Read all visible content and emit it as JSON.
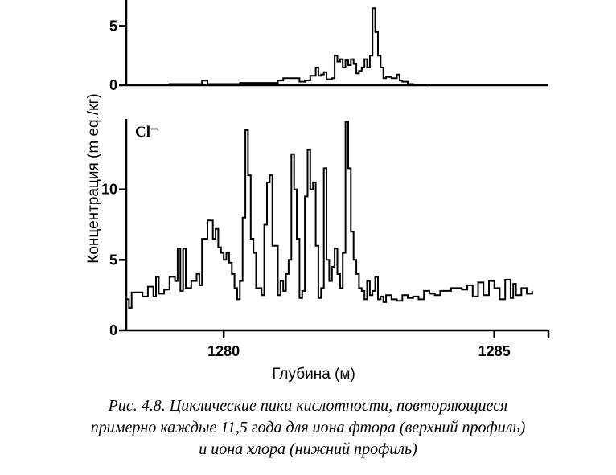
{
  "chart_data": [
    {
      "type": "line",
      "panel": "upper",
      "label": "",
      "ylabel": "",
      "xlabel": "",
      "xlim": [
        1278.2,
        1286.0
      ],
      "ylim": [
        0,
        7.2
      ],
      "y_ticks": [
        {
          "value": 0,
          "label": "0"
        },
        {
          "value": 5,
          "label": "5"
        }
      ],
      "x": [
        1278.2,
        1279.0,
        1279.5,
        1279.6,
        1279.7,
        1280.3,
        1280.9,
        1281.0,
        1281.1,
        1281.4,
        1281.5,
        1281.6,
        1281.7,
        1281.75,
        1281.8,
        1281.85,
        1281.9,
        1282.0,
        1282.05,
        1282.1,
        1282.15,
        1282.2,
        1282.25,
        1282.3,
        1282.35,
        1282.4,
        1282.45,
        1282.5,
        1282.55,
        1282.6,
        1282.65,
        1282.7,
        1282.75,
        1282.8,
        1282.85,
        1282.9,
        1282.95,
        1283.0,
        1283.1,
        1283.2,
        1283.25,
        1283.3,
        1283.4,
        1283.5,
        1283.8,
        1286.0
      ],
      "series": [
        {
          "values": [
            0,
            0.1,
            0.1,
            0.4,
            0.1,
            0.2,
            0.2,
            0.4,
            0.6,
            0.3,
            0.4,
            0.8,
            1.5,
            0.8,
            0.9,
            1.1,
            0.5,
            0.6,
            2.5,
            2.0,
            2.2,
            1.5,
            2.1,
            1.7,
            2.2,
            1.8,
            1.0,
            1.2,
            1.5,
            2.2,
            1.5,
            2.5,
            6.5,
            4.5,
            2.5,
            1.5,
            0.6,
            0.7,
            0.6,
            0.9,
            0.4,
            0.3,
            0.1,
            0.05,
            0,
            0
          ]
        }
      ]
    },
    {
      "type": "line",
      "panel": "lower",
      "label": "Cl⁻",
      "ylabel": "Концентрация (m eq./кг)",
      "xlabel": "Глубина (м)",
      "xlim": [
        1278.2,
        1286.0
      ],
      "ylim": [
        0,
        15
      ],
      "y_ticks": [
        {
          "value": 0,
          "label": "0"
        },
        {
          "value": 5,
          "label": "5"
        },
        {
          "value": 10,
          "label": "10"
        }
      ],
      "x_ticks": [
        {
          "value": 1280,
          "label": "1280"
        },
        {
          "value": 1285,
          "label": "1285"
        }
      ],
      "x": [
        1278.2,
        1278.25,
        1278.3,
        1278.5,
        1278.6,
        1278.7,
        1278.75,
        1278.8,
        1278.9,
        1279.0,
        1279.1,
        1279.15,
        1279.2,
        1279.25,
        1279.3,
        1279.4,
        1279.5,
        1279.55,
        1279.6,
        1279.7,
        1279.8,
        1279.85,
        1279.9,
        1279.95,
        1280.0,
        1280.05,
        1280.1,
        1280.15,
        1280.2,
        1280.25,
        1280.3,
        1280.35,
        1280.4,
        1280.45,
        1280.5,
        1280.55,
        1280.6,
        1280.7,
        1280.75,
        1280.8,
        1280.85,
        1280.9,
        1281.0,
        1281.05,
        1281.1,
        1281.15,
        1281.2,
        1281.25,
        1281.3,
        1281.35,
        1281.4,
        1281.45,
        1281.5,
        1281.55,
        1281.6,
        1281.65,
        1281.7,
        1281.75,
        1281.8,
        1281.85,
        1281.9,
        1281.95,
        1282.0,
        1282.05,
        1282.1,
        1282.15,
        1282.2,
        1282.25,
        1282.3,
        1282.35,
        1282.4,
        1282.45,
        1282.5,
        1282.55,
        1282.6,
        1282.65,
        1282.7,
        1282.75,
        1282.8,
        1282.85,
        1282.9,
        1282.95,
        1283.0,
        1283.1,
        1283.2,
        1283.3,
        1283.4,
        1283.5,
        1283.6,
        1283.7,
        1283.8,
        1283.9,
        1284.0,
        1284.2,
        1284.4,
        1284.5,
        1284.6,
        1284.7,
        1284.8,
        1284.9,
        1285.0,
        1285.1,
        1285.2,
        1285.3,
        1285.35,
        1285.4,
        1285.5,
        1285.6,
        1285.7
      ],
      "series": [
        {
          "values": [
            2.2,
            1.6,
            2.7,
            2.4,
            3.1,
            2.4,
            3.8,
            2.6,
            2.9,
            3.8,
            3.5,
            5.8,
            2.8,
            5.8,
            3.0,
            3.5,
            4.0,
            3.2,
            6.5,
            7.8,
            6.5,
            7.2,
            5.9,
            5.5,
            5.0,
            5.5,
            4.8,
            4.0,
            3.0,
            2.2,
            3.5,
            8.0,
            14.2,
            11.0,
            6.5,
            5.5,
            3.0,
            2.5,
            7.5,
            10.5,
            11.0,
            6.0,
            2.5,
            3.5,
            2.8,
            4.0,
            5.0,
            12.5,
            10.0,
            6.5,
            2.3,
            2.8,
            9.5,
            12.8,
            10.0,
            10.5,
            6.0,
            2.3,
            3.0,
            11.5,
            5.0,
            3.5,
            4.5,
            5.8,
            4.0,
            3.0,
            5.5,
            14.8,
            11.5,
            7.0,
            5.0,
            4.0,
            3.0,
            2.8,
            2.2,
            3.5,
            2.5,
            2.8,
            3.8,
            2.2,
            2.4,
            2.0,
            2.5,
            2.2,
            2.1,
            2.5,
            2.3,
            2.4,
            2.2,
            2.8,
            2.6,
            2.5,
            2.8,
            3.0,
            2.9,
            3.2,
            2.4,
            3.4,
            2.5,
            3.5,
            3.0,
            2.2,
            3.6,
            2.3,
            3.3,
            2.5,
            3.0,
            2.6,
            2.8
          ]
        }
      ]
    }
  ],
  "caption": {
    "lines": [
      "Рис. 4.8. Циклические пики кислотности, повторяющиеся",
      "примерно каждые 11,5 года для иона фтора (верхний профиль)",
      "и иона хлора (нижний профиль)"
    ]
  }
}
